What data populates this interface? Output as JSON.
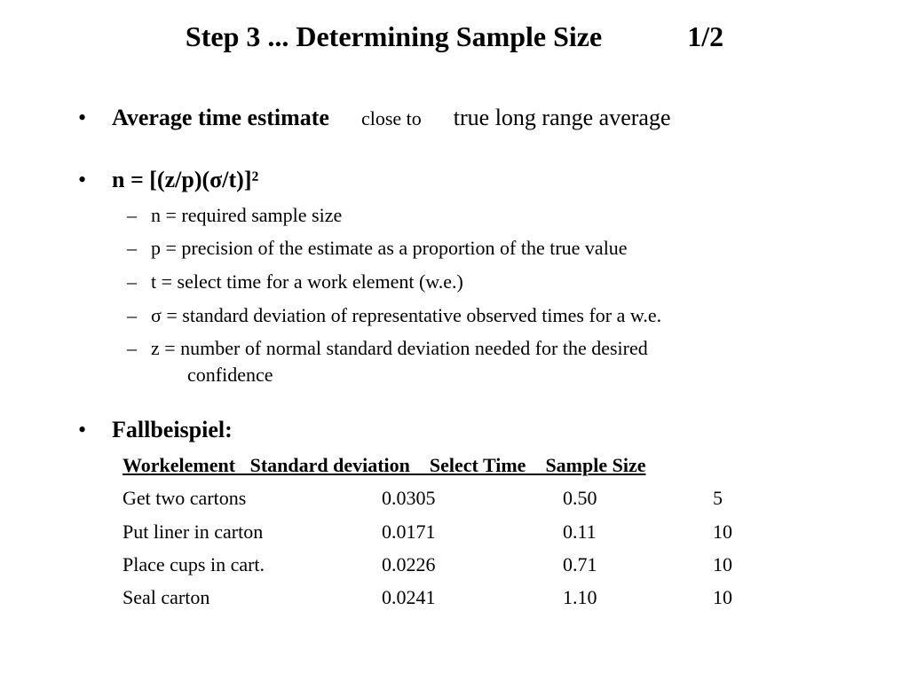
{
  "slide": {
    "title": "Step 3 ... Determining Sample Size",
    "page": "1/2"
  },
  "bullets": [
    {
      "bold": "Average time estimate",
      "small": "close to",
      "rest": "true long range average"
    },
    {
      "bold": "n = [(z/p)(σ/t)]²"
    },
    {
      "bold": "Fallbeispiel:"
    }
  ],
  "bullet_symbol": "•",
  "dash_symbol": "–",
  "definitions": [
    "n = required sample size",
    "p = precision of the estimate as a proportion of the true value",
    "t = select time for a work element (w.e.)",
    "σ = standard deviation of representative observed times for a w.e.",
    "z = number of normal standard deviation needed for the desired",
    "confidence"
  ],
  "table": {
    "header_line": "Workelement   Standard deviation    Select Time    Sample Size",
    "rows": [
      [
        "Get two cartons",
        "0.0305",
        "0.50",
        "5"
      ],
      [
        "Put liner in carton",
        "0.0171",
        "0.11",
        "10"
      ],
      [
        "Place cups in cart.",
        "0.0226",
        "0.71",
        "10"
      ],
      [
        "Seal carton",
        "0.0241",
        "1.10",
        "10"
      ]
    ]
  }
}
